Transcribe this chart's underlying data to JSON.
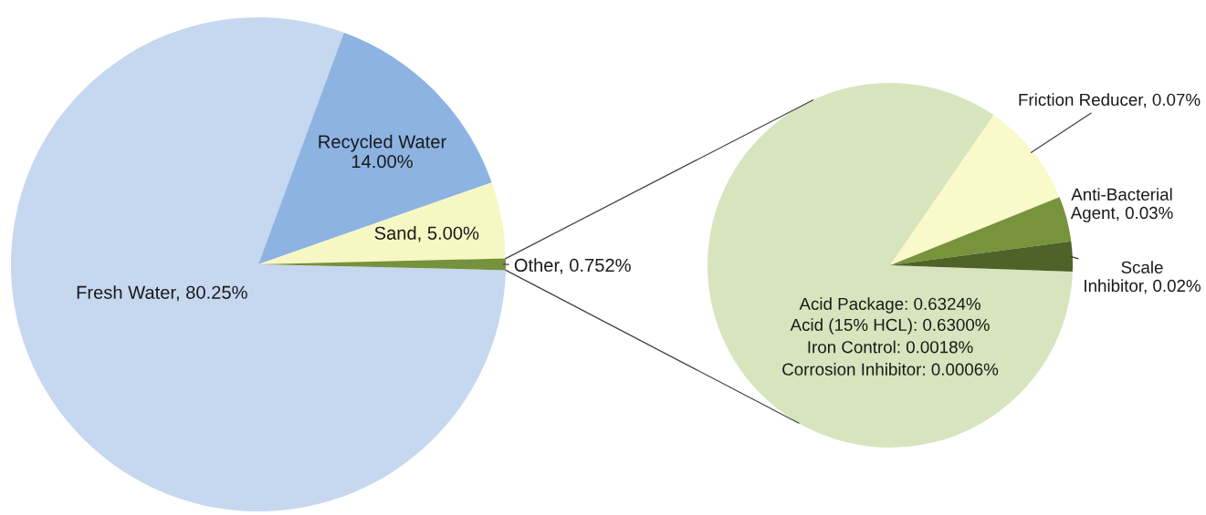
{
  "chart_data": [
    {
      "type": "pie",
      "categories": [
        "Fresh Water",
        "Recycled Water",
        "Sand",
        "Other"
      ],
      "values": [
        80.25,
        14.0,
        5.0,
        0.752
      ],
      "value_labels": [
        "80.25%",
        "14.00%",
        "5.00%",
        "0.752%"
      ],
      "colors": [
        "#c6d7f0",
        "#8db3e2",
        "#f7f7c4",
        "#76923c"
      ]
    },
    {
      "type": "pie",
      "categories": [
        "Acid Package",
        "Friction Reducer",
        "Anti-Bacterial Agent",
        "Scale Inhibitor"
      ],
      "values": [
        0.6324,
        0.07,
        0.03,
        0.02
      ],
      "value_labels": [
        "0.6324%",
        "0.07%",
        "0.03%",
        "0.02%"
      ],
      "colors": [
        "#d7e4bd",
        "#f9f9c9",
        "#77933c",
        "#4f6228"
      ],
      "annotations": [
        "Acid (15% HCL): 0.6300%",
        "Iron Control: 0.0018%",
        "Corrosion Inhibitor: 0.0006%"
      ]
    }
  ]
}
